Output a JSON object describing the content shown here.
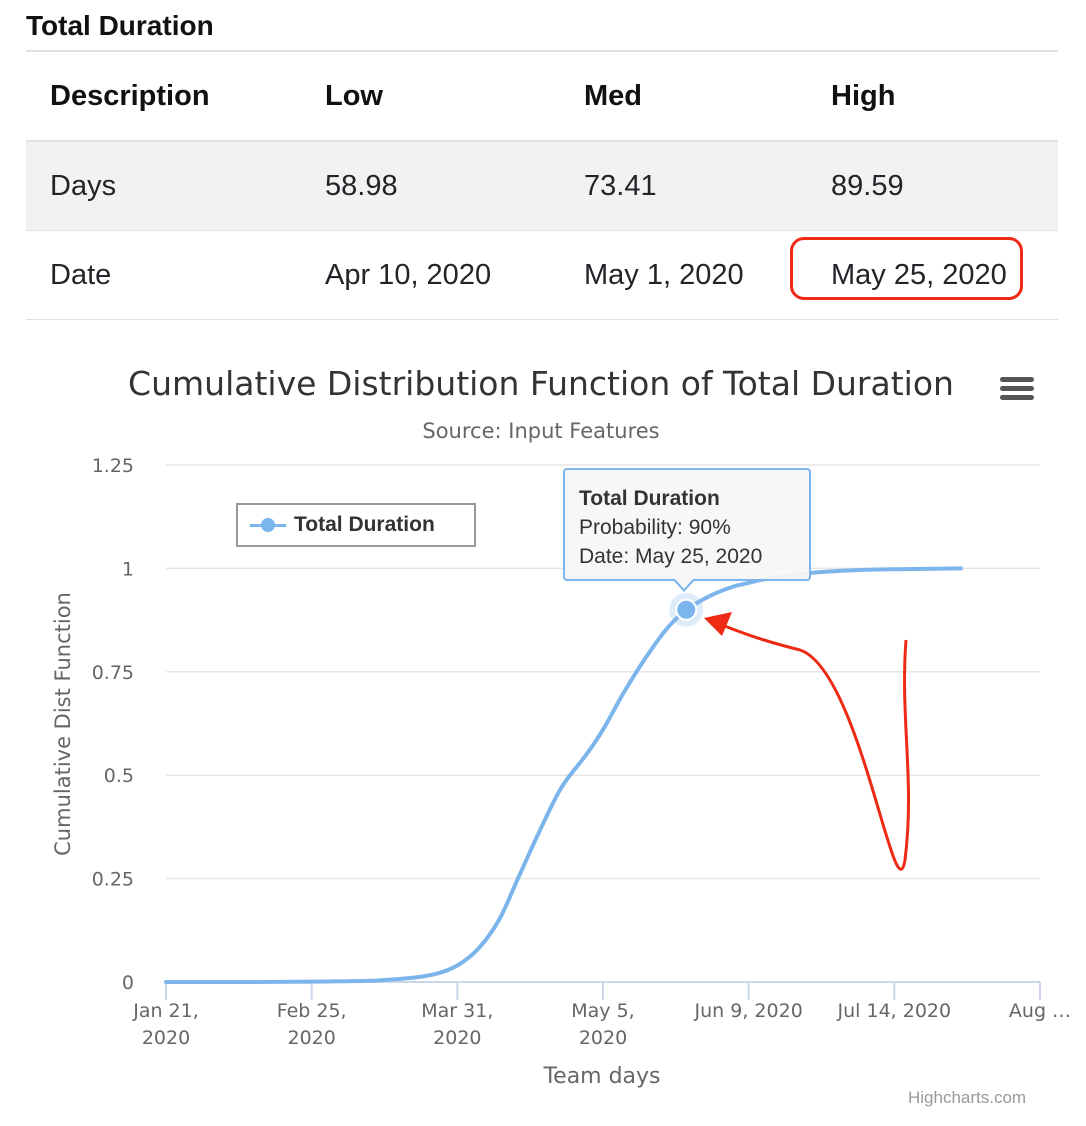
{
  "section_title": "Total Duration",
  "table": {
    "headers": [
      "Description",
      "Low",
      "Med",
      "High"
    ],
    "rows": [
      [
        "Days",
        "58.98",
        "73.41",
        "89.59"
      ],
      [
        "Date",
        "Apr 10, 2020",
        "May 1, 2020",
        "May 25, 2020"
      ]
    ]
  },
  "highlight_color": "#ee2a14",
  "chart_data": {
    "type": "line",
    "title": "Cumulative Distribution Function of Total Duration",
    "subtitle": "Source: Input Features",
    "xlabel": "Team days",
    "ylabel": "Cumulative Dist Function",
    "ylim": [
      0,
      1.25
    ],
    "yticks": [
      0,
      0.25,
      0.5,
      0.75,
      1,
      1.25
    ],
    "ytick_labels": [
      "0",
      "0.25",
      "0.5",
      "0.75",
      "1",
      "1.25"
    ],
    "xlim": [
      "2020-01-21",
      "2020-08-18"
    ],
    "xticks": [
      "2020-01-21",
      "2020-02-25",
      "2020-03-31",
      "2020-05-05",
      "2020-06-09",
      "2020-07-14",
      "2020-08-18"
    ],
    "xtick_labels": [
      [
        "Jan 21,",
        "2020"
      ],
      [
        "Feb 25,",
        "2020"
      ],
      [
        "Mar 31,",
        "2020"
      ],
      [
        "May 5,",
        "2020"
      ],
      [
        "Jun 9, 2020"
      ],
      [
        "Jul 14, 2020"
      ],
      [
        "Aug …"
      ]
    ],
    "grid": true,
    "legend": {
      "position": "top-left",
      "label": "Total Duration"
    },
    "series": [
      {
        "name": "Total Duration",
        "color": "#7cb5ec",
        "x": [
          "2020-01-21",
          "2020-02-10",
          "2020-02-25",
          "2020-03-10",
          "2020-03-20",
          "2020-03-26",
          "2020-03-31",
          "2020-04-05",
          "2020-04-10",
          "2020-04-15",
          "2020-04-20",
          "2020-04-25",
          "2020-05-01",
          "2020-05-05",
          "2020-05-10",
          "2020-05-15",
          "2020-05-20",
          "2020-05-25",
          "2020-05-31",
          "2020-06-05",
          "2020-06-09",
          "2020-06-15",
          "2020-06-25",
          "2020-07-05",
          "2020-07-14",
          "2020-07-30"
        ],
        "y": [
          0,
          0,
          0.001,
          0.003,
          0.01,
          0.02,
          0.04,
          0.08,
          0.15,
          0.26,
          0.37,
          0.47,
          0.55,
          0.61,
          0.7,
          0.78,
          0.85,
          0.9,
          0.935,
          0.955,
          0.965,
          0.978,
          0.99,
          0.996,
          0.998,
          1.0
        ]
      }
    ],
    "highlight_point": {
      "x": "2020-05-25",
      "y": 0.9
    },
    "tooltip": {
      "title": "Total Duration",
      "line1": "Probability: 90%",
      "line2": "Date: May 25, 2020"
    },
    "credits": "Highcharts.com"
  }
}
